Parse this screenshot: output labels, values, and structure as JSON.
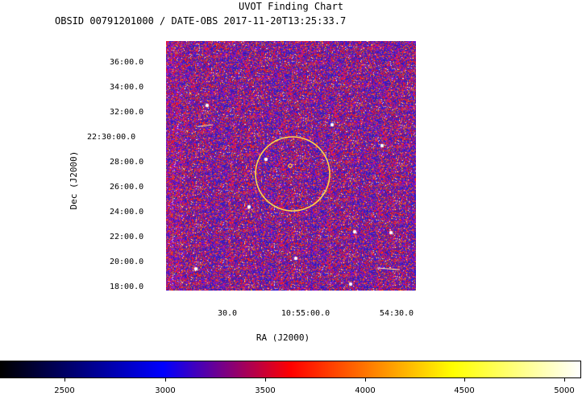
{
  "header": {
    "title": "UVOT Finding Chart",
    "subtitle": "OBSID 00791201000 / DATE-OBS 2017-11-20T13:25:33.7"
  },
  "axes": {
    "dec_label": "Dec (J2000)",
    "ra_label": "RA (J2000)",
    "dec_ticks": [
      "36:00.0",
      "34:00.0",
      "32:00.0",
      "22:30:00.0",
      "28:00.0",
      "26:00.0",
      "24:00.0",
      "22:00.0",
      "20:00.0",
      "18:00.0"
    ],
    "ra_ticks": [
      "30.0",
      "10:55:00.0",
      "54:30.0"
    ]
  },
  "colorbar": {
    "ticks": [
      "2500",
      "3000",
      "3500",
      "4000",
      "4500",
      "5000"
    ],
    "range": [
      2200,
      5100
    ],
    "colors": [
      "#000000",
      "#0000ff",
      "#ff0000",
      "#ffff00",
      "#ffffff"
    ]
  },
  "overlay": {
    "circle_color": "#ffd24a",
    "marker_color": "#ffd24a"
  }
}
